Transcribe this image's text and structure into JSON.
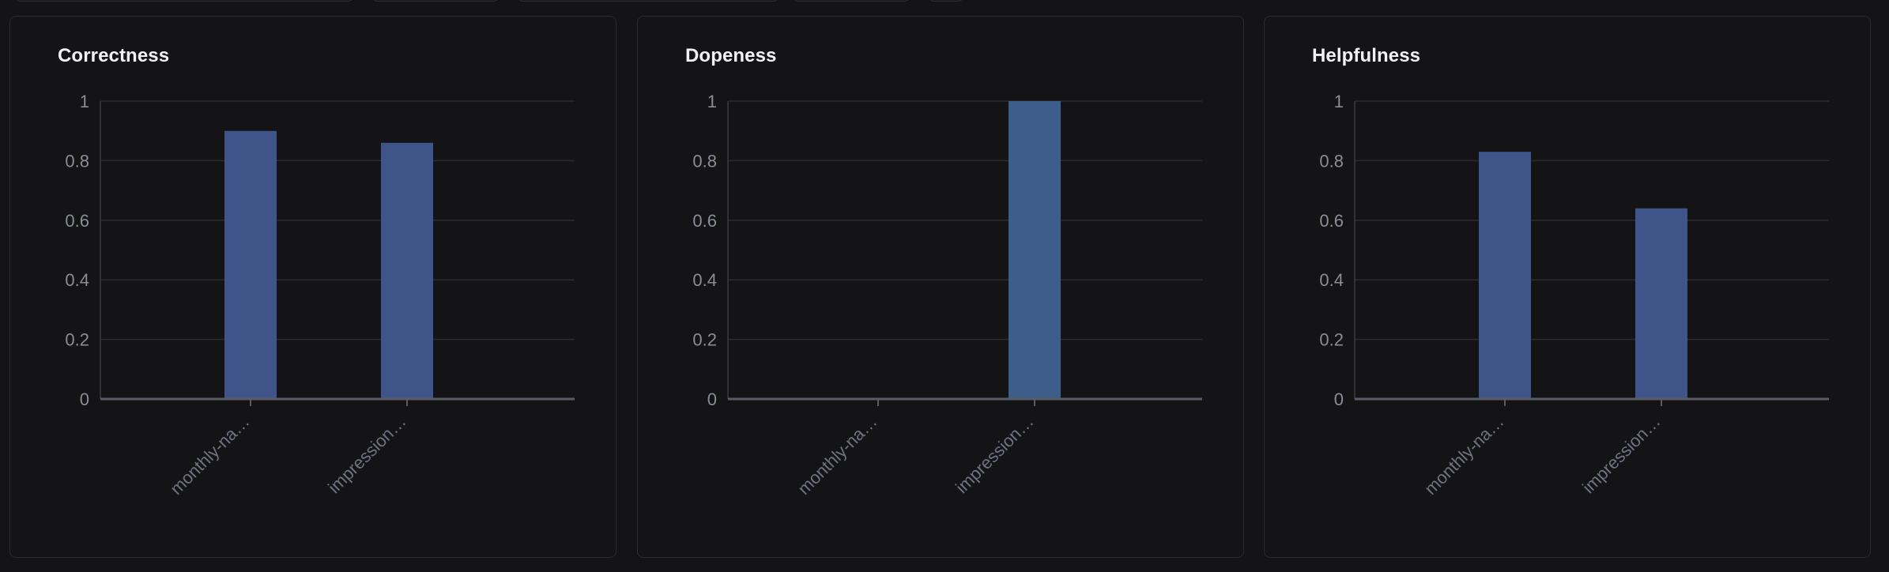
{
  "colors": {
    "background": "#141417",
    "panel_border": "#2a2b31",
    "grid": "#2a2b30",
    "axis": "#5b5d66",
    "tick_label": "#8a8c96",
    "category_label": "#6f7280",
    "bar_correctness": "#3f5488",
    "bar_dopeness": "#3d5d8b",
    "bar_helpfulness": "#3f5488"
  },
  "chart_data": [
    {
      "type": "bar",
      "title": "Correctness",
      "categories": [
        "monthly-na…",
        "impression…"
      ],
      "values": [
        0.9,
        0.86
      ],
      "ylim": [
        0,
        1
      ],
      "yticks": [
        "0",
        "0.2",
        "0.4",
        "0.6",
        "0.8",
        "1"
      ],
      "xlabel": "",
      "ylabel": "",
      "grid": true,
      "color": "#3f5488"
    },
    {
      "type": "bar",
      "title": "Dopeness",
      "categories": [
        "monthly-na…",
        "impression…"
      ],
      "values": [
        0,
        1
      ],
      "ylim": [
        0,
        1
      ],
      "yticks": [
        "0",
        "0.2",
        "0.4",
        "0.6",
        "0.8",
        "1"
      ],
      "xlabel": "",
      "ylabel": "",
      "grid": true,
      "color": "#3d5d8b"
    },
    {
      "type": "bar",
      "title": "Helpfulness",
      "categories": [
        "monthly-na…",
        "impression…"
      ],
      "values": [
        0.83,
        0.64
      ],
      "ylim": [
        0,
        1
      ],
      "yticks": [
        "0",
        "0.2",
        "0.4",
        "0.6",
        "0.8",
        "1"
      ],
      "xlabel": "",
      "ylabel": "",
      "grid": true,
      "color": "#3f5488"
    }
  ]
}
